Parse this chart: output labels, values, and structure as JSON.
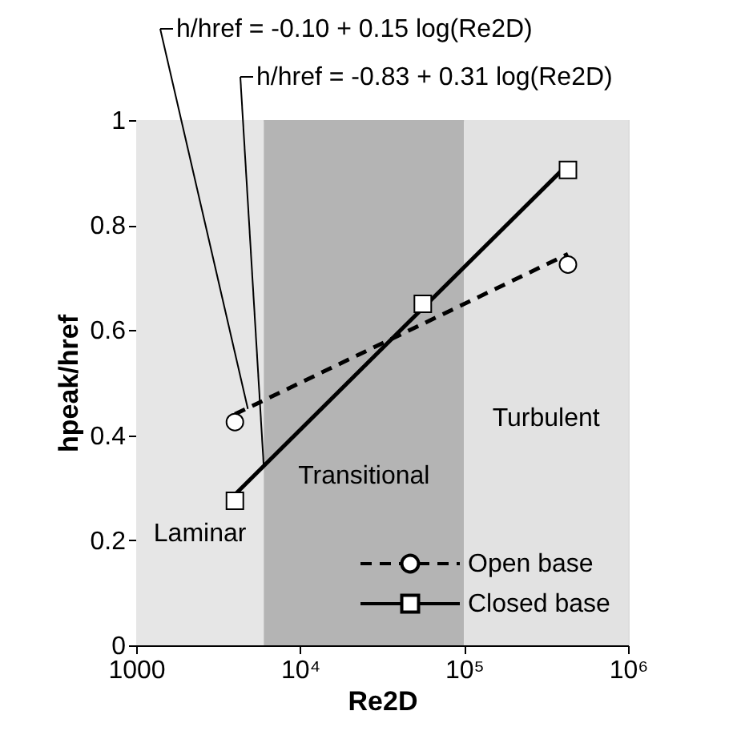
{
  "chart_data": {
    "type": "line",
    "xlabel": "Re2D",
    "ylabel": "hpeak/href",
    "log": "x",
    "xlim": [
      1000,
      1000000
    ],
    "xticks": [
      {
        "value": 1000,
        "label": "1000"
      },
      {
        "value": 10000,
        "label": "10⁴"
      },
      {
        "value": 100000,
        "label": "10⁵"
      },
      {
        "value": 1000000,
        "label": "10⁶"
      }
    ],
    "ylim": [
      0,
      1
    ],
    "yticks": [
      {
        "value": 0,
        "label": "0"
      },
      0.2,
      0.4,
      0.6,
      0.8,
      {
        "value": 1,
        "label": "1"
      }
    ],
    "grid": false,
    "legend": "bottom right",
    "series": [
      {
        "name": "Open base",
        "type": "scatter",
        "marker": "circle",
        "line_style": "dashed",
        "color": "#000000",
        "x": [
          4000,
          430000
        ],
        "values": [
          0.425,
          0.725
        ]
      },
      {
        "name": "Closed base",
        "type": "scatter",
        "marker": "square",
        "line_style": "solid",
        "color": "#000000",
        "x": [
          4000,
          56000,
          430000
        ],
        "values": [
          0.275,
          0.65,
          0.905
        ]
      },
      {
        "line_style": "dashed",
        "color": "#000000",
        "x": [
          4000,
          430000
        ],
        "values": [
          0.44,
          0.745
        ]
      },
      {
        "line_style": "solid",
        "color": "#000000",
        "x": [
          4000,
          430000
        ],
        "values": [
          0.287,
          0.916
        ]
      }
    ],
    "bands": [
      {
        "axis": "x",
        "from": 1000,
        "to": 6000,
        "color": "#e6e6e6",
        "label": "Laminar"
      },
      {
        "axis": "x",
        "from": 6000,
        "to": 100000,
        "color": "#b4b4b4",
        "label": "Transitional"
      },
      {
        "axis": "x",
        "from": 100000,
        "to": 1000000,
        "color": "#e2e2e2",
        "label": "Turbulent"
      }
    ],
    "annotations": [
      {
        "text": "h/href = -0.10 + 0.15 log(Re2D)",
        "x": 4800,
        "y": 0.45
      },
      {
        "text": "h/href = -0.83 + 0.31 log(Re2D)",
        "x": 6000,
        "y": 0.34
      }
    ]
  }
}
